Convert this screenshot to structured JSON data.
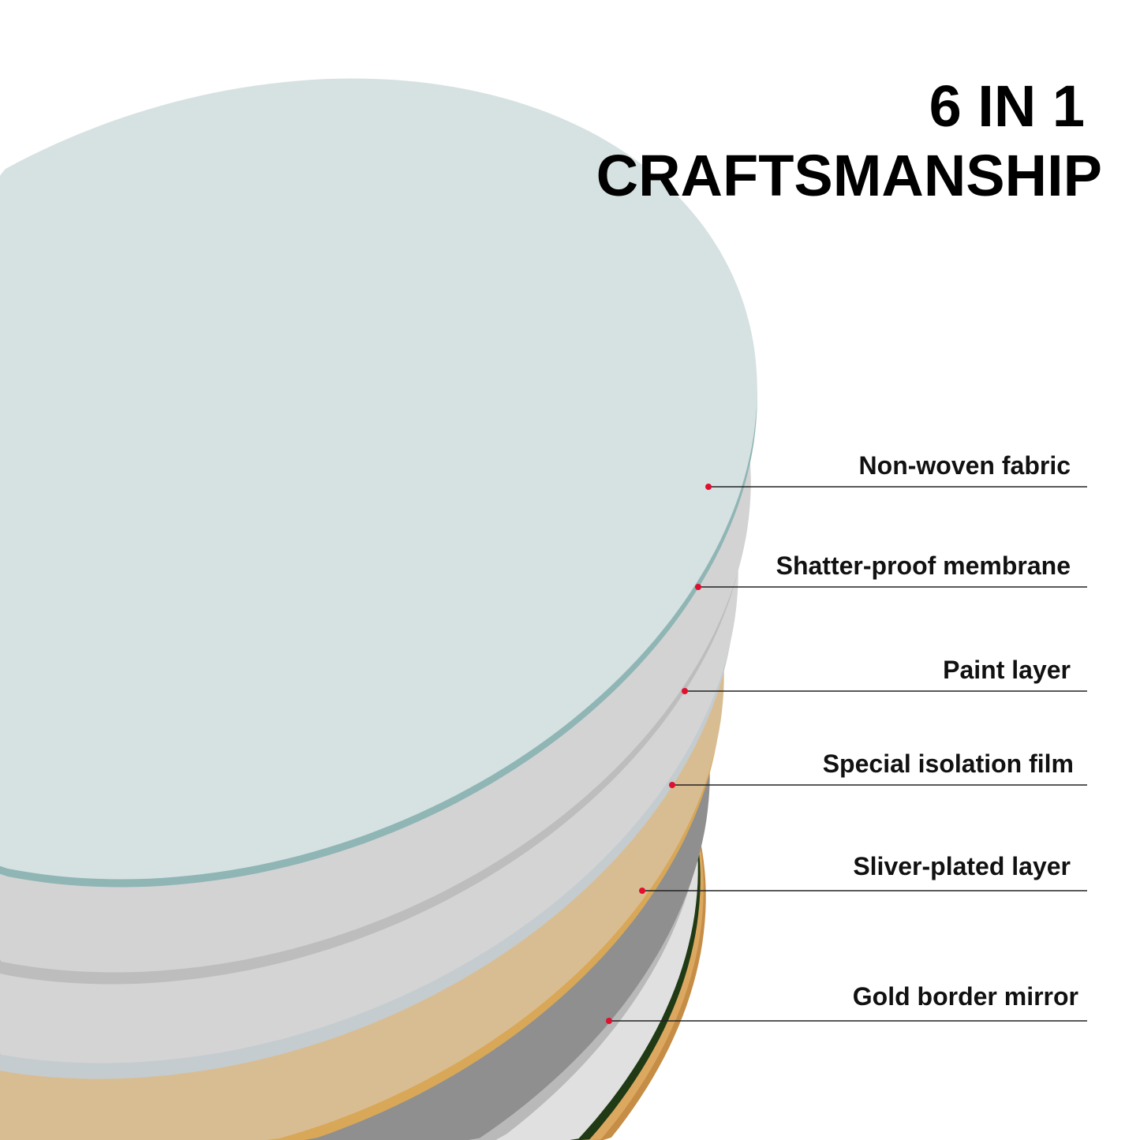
{
  "title": {
    "line1": "6 IN 1",
    "line2": "CRAFTSMANSHIP"
  },
  "layers": [
    {
      "label": "Non-woven fabric",
      "color": "#d0d0d0"
    },
    {
      "label": "Shatter-proof membrane",
      "color": "#c9c9c9"
    },
    {
      "label": "Paint layer",
      "color": "#d9bd92"
    },
    {
      "label": "Special isolation film",
      "color": "#8f8f8f"
    },
    {
      "label": "Sliver-plated layer",
      "color": "#e0e0e0"
    },
    {
      "label": "Gold border mirror",
      "color": "#c58d45"
    }
  ],
  "colors": {
    "glass_top": "#d6e1e1",
    "glass_edge": "#8fb5b5",
    "marker": "#e0102e"
  }
}
